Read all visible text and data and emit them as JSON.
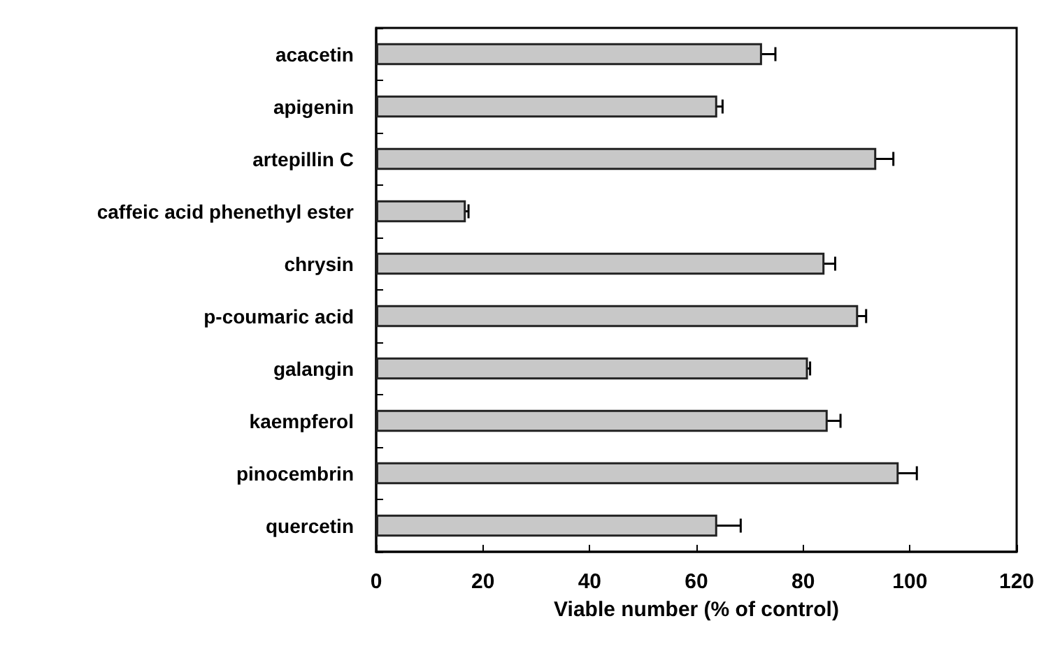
{
  "chart_data": {
    "type": "bar",
    "orientation": "horizontal",
    "xlabel": "Viable number (% of control)",
    "categories": [
      "acacetin",
      "apigenin",
      "artepillin C",
      "caffeic acid phenethyl ester",
      "chrysin",
      "p-coumaric acid",
      "galangin",
      "kaempferol",
      "pinocembrin",
      "quercetin"
    ],
    "values": [
      72.3,
      63.9,
      93.7,
      16.8,
      84.0,
      90.3,
      80.9,
      84.6,
      97.9,
      63.9
    ],
    "errors": [
      2.5,
      1.0,
      3.2,
      0.5,
      2.0,
      1.5,
      0.4,
      2.4,
      3.4,
      4.4
    ],
    "color": "#c8c8c8",
    "xlim": [
      0,
      120
    ],
    "xticks": [
      0,
      20,
      40,
      60,
      80,
      100,
      120
    ],
    "grid": false
  }
}
